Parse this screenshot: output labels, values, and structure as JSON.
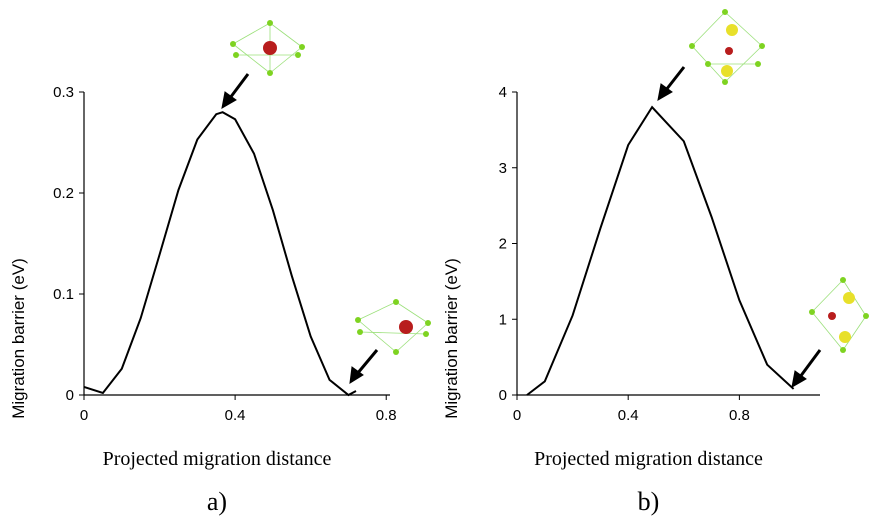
{
  "chart_data": [
    {
      "type": "line",
      "panel_label": "a)",
      "xlabel": "Projected migration distance",
      "ylabel": "Migration barrier (eV)",
      "xlim": [
        0,
        0.81
      ],
      "xticks": [
        0,
        0.4,
        0.8
      ],
      "ylim": [
        0,
        0.3
      ],
      "yticks": [
        0,
        0.1,
        0.2,
        0.3
      ],
      "color": "#000000",
      "x": [
        0,
        0.05,
        0.1,
        0.15,
        0.2,
        0.25,
        0.3,
        0.35,
        0.367,
        0.4,
        0.45,
        0.5,
        0.55,
        0.6,
        0.65,
        0.7,
        0.72
      ],
      "values": [
        0.008,
        0.002,
        0.026,
        0.076,
        0.139,
        0.203,
        0.253,
        0.278,
        0.28,
        0.273,
        0.239,
        0.183,
        0.118,
        0.058,
        0.015,
        0,
        0.004
      ]
    },
    {
      "type": "line",
      "panel_label": "b)",
      "xlabel": "Projected migration distance",
      "ylabel": "Migration barrier (eV)",
      "xlim": [
        0,
        1.09
      ],
      "xticks": [
        0,
        0.4,
        0.8
      ],
      "ylim": [
        0,
        4
      ],
      "yticks": [
        0,
        1,
        2,
        3,
        4
      ],
      "color": "#000000",
      "x": [
        0.036,
        0.1,
        0.2,
        0.3,
        0.4,
        0.486,
        0.6,
        0.7,
        0.8,
        0.9,
        0.995
      ],
      "values": [
        0,
        0.18,
        1.05,
        2.2,
        3.3,
        3.8,
        3.35,
        2.35,
        1.25,
        0.4,
        0.08
      ]
    }
  ]
}
